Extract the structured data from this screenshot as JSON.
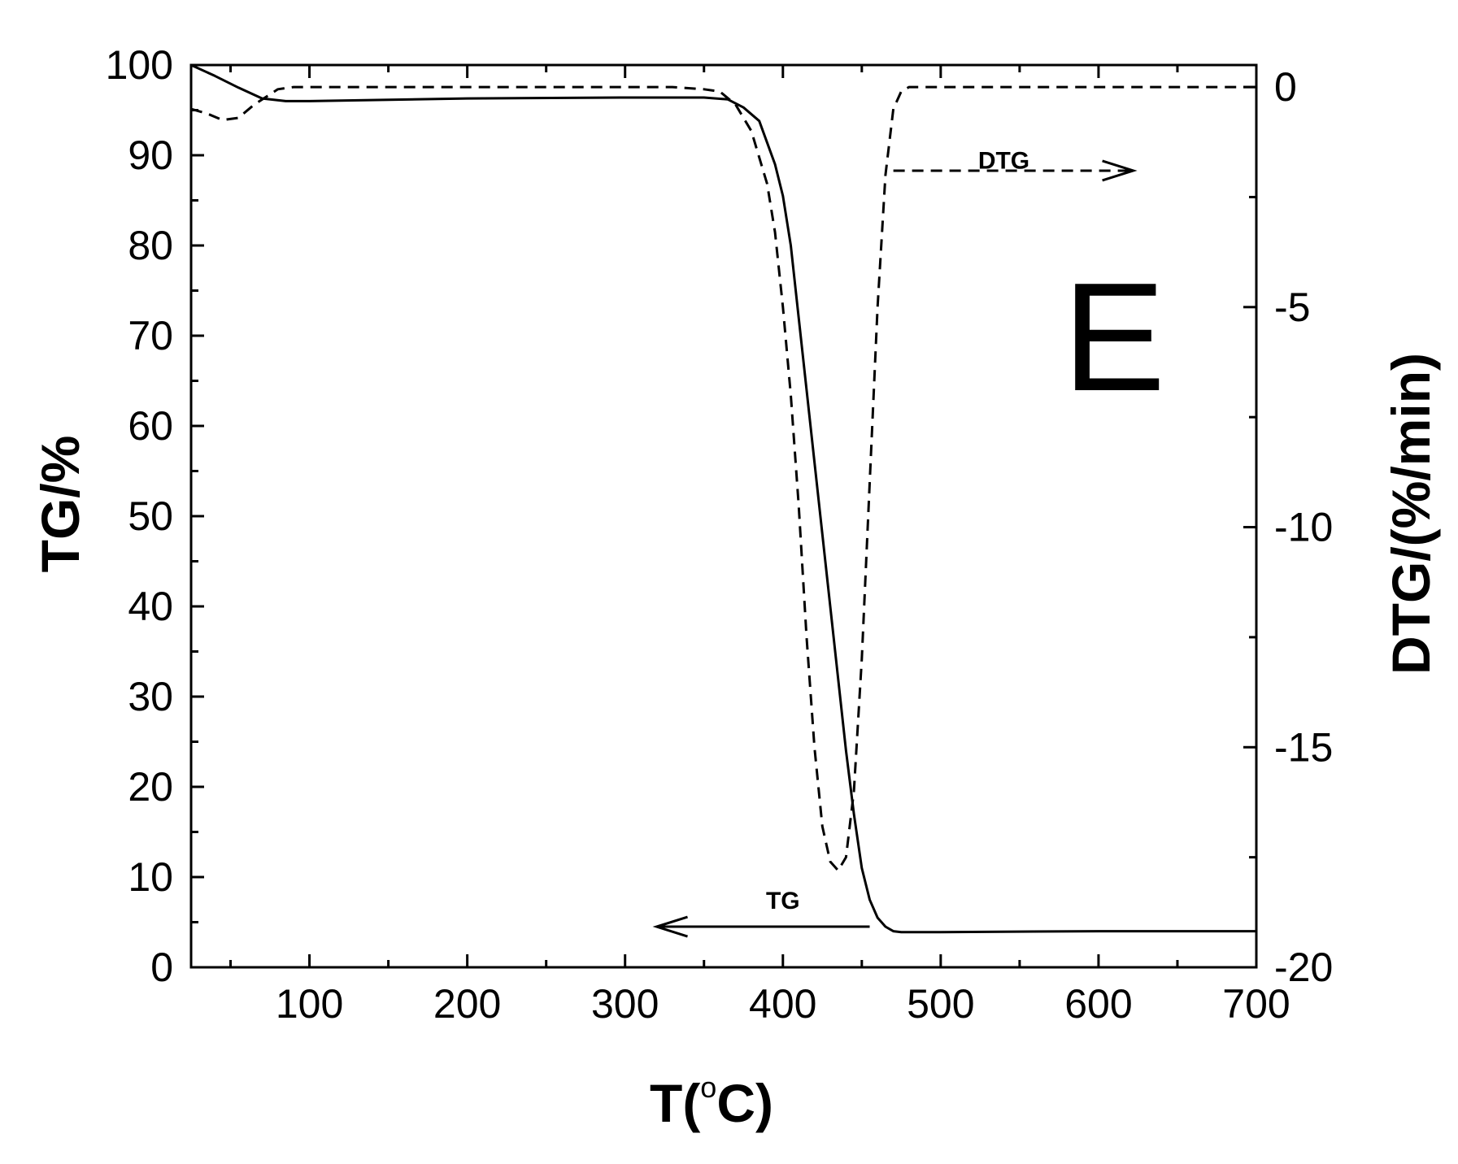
{
  "chart_data": {
    "type": "line",
    "panel_label": "E",
    "xlabel": "T(°C)",
    "xlabel_parts": {
      "prefix": "T(",
      "superscript": "o",
      "suffix": "C)"
    },
    "ylabel_left": "TG/%",
    "ylabel_right": "DTG/(%/min)",
    "xlim": [
      25,
      700
    ],
    "ylim_left": [
      0,
      100
    ],
    "ylim_right": [
      -20,
      0.5
    ],
    "x_ticks": [
      100,
      200,
      300,
      400,
      500,
      600,
      700
    ],
    "y_left_ticks": [
      0,
      10,
      20,
      30,
      40,
      50,
      60,
      70,
      80,
      90,
      100
    ],
    "y_right_ticks": [
      0,
      -5,
      -10,
      -15,
      -20
    ],
    "grid": false,
    "series": [
      {
        "name": "TG",
        "axis": "left",
        "style": "solid",
        "arrow_direction": "left",
        "arrow_range": [
          455,
          320
        ],
        "arrow_y": 4.5,
        "points": [
          [
            25,
            100
          ],
          [
            40,
            98.8
          ],
          [
            55,
            97.5
          ],
          [
            70,
            96.3
          ],
          [
            85,
            96
          ],
          [
            100,
            96
          ],
          [
            200,
            96.3
          ],
          [
            300,
            96.4
          ],
          [
            350,
            96.4
          ],
          [
            365,
            96.2
          ],
          [
            375,
            95.3
          ],
          [
            385,
            93.8
          ],
          [
            395,
            89
          ],
          [
            400,
            85.5
          ],
          [
            405,
            80
          ],
          [
            410,
            72
          ],
          [
            415,
            64
          ],
          [
            420,
            56
          ],
          [
            425,
            48
          ],
          [
            430,
            40
          ],
          [
            435,
            32
          ],
          [
            440,
            24
          ],
          [
            445,
            17
          ],
          [
            450,
            11
          ],
          [
            455,
            7.5
          ],
          [
            460,
            5.5
          ],
          [
            465,
            4.5
          ],
          [
            470,
            4
          ],
          [
            475,
            3.9
          ],
          [
            500,
            3.9
          ],
          [
            600,
            4
          ],
          [
            700,
            4
          ]
        ]
      },
      {
        "name": "DTG",
        "axis": "right",
        "style": "dashed",
        "arrow_direction": "right",
        "arrow_range": [
          470,
          622
        ],
        "arrow_y": -1.9,
        "points": [
          [
            25,
            -0.5
          ],
          [
            35,
            -0.6
          ],
          [
            45,
            -0.75
          ],
          [
            55,
            -0.7
          ],
          [
            65,
            -0.4
          ],
          [
            80,
            -0.05
          ],
          [
            90,
            0
          ],
          [
            150,
            0
          ],
          [
            250,
            0
          ],
          [
            330,
            0
          ],
          [
            350,
            -0.05
          ],
          [
            360,
            -0.1
          ],
          [
            370,
            -0.4
          ],
          [
            380,
            -1.0
          ],
          [
            390,
            -2.2
          ],
          [
            395,
            -3.3
          ],
          [
            400,
            -5.0
          ],
          [
            405,
            -7.0
          ],
          [
            410,
            -9.5
          ],
          [
            415,
            -12.5
          ],
          [
            420,
            -15.0
          ],
          [
            425,
            -16.8
          ],
          [
            430,
            -17.6
          ],
          [
            435,
            -17.8
          ],
          [
            440,
            -17.5
          ],
          [
            445,
            -16.0
          ],
          [
            450,
            -13.0
          ],
          [
            455,
            -9.0
          ],
          [
            460,
            -5.0
          ],
          [
            465,
            -2.0
          ],
          [
            470,
            -0.5
          ],
          [
            475,
            -0.1
          ],
          [
            480,
            0
          ],
          [
            550,
            0
          ],
          [
            600,
            0
          ],
          [
            650,
            0
          ],
          [
            700,
            0
          ]
        ]
      }
    ],
    "annotations": [
      {
        "text": "TG",
        "x": 400,
        "y_left": 6.5
      },
      {
        "text": "DTG",
        "x": 540,
        "y_left": 88.5
      }
    ]
  }
}
